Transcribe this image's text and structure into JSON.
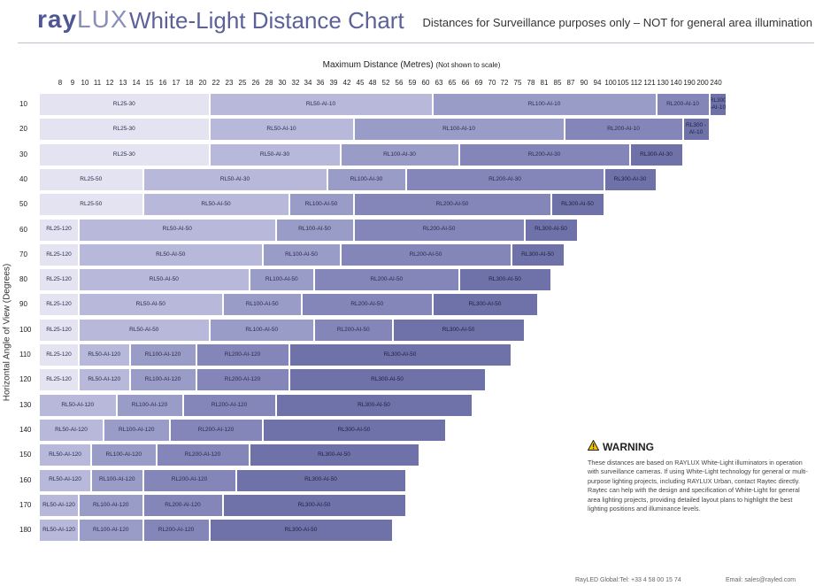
{
  "header": {
    "logo_ray": "ray",
    "logo_lux": "LUX",
    "title": "White-Light Distance Chart",
    "subtitle": "Distances for Surveillance purposes only – NOT for general area illumination"
  },
  "warning": {
    "title": "WARNING",
    "icon": "warning-triangle-icon",
    "body": "These distances are based on RAYLUX White-Light illuminators in operation with surveillance cameras. If using White-Light technology for general or multi-purpose lighting projects, including RAYLUX Urban, contact Raytec directly. Raytec can help with the design and specification of White-Light for general area lighting projects, providing detailed layout plans to highlight the best lighting positions and illuminance levels."
  },
  "footer": {
    "tel": "RayLED Global:Tel:  +33 4 58 00 15 74",
    "email": "Email:  sales@rayled.com"
  },
  "chart_data": {
    "type": "bar",
    "orientation": "horizontal-stacked-ranges",
    "xlabel": "Maximum Distance (Metres)",
    "xlabel_note": "(Not shown to scale)",
    "ylabel": "Horizontal Angle of View (Degrees)",
    "x_ticks": [
      8,
      9,
      10,
      11,
      12,
      13,
      14,
      15,
      16,
      17,
      18,
      20,
      22,
      23,
      25,
      26,
      28,
      30,
      32,
      34,
      36,
      39,
      42,
      45,
      48,
      52,
      56,
      59,
      60,
      63,
      65,
      66,
      69,
      70,
      72,
      75,
      78,
      81,
      85,
      87,
      90,
      94,
      100,
      105,
      112,
      121,
      130,
      140,
      190,
      200,
      240
    ],
    "x_scale": "ordinal (not to scale)",
    "colors": [
      "#e3e3f2",
      "#b8b9da",
      "#9a9cc8",
      "#8486b9",
      "#6f72a8",
      "#5e629b"
    ],
    "rows": [
      {
        "angle": "10",
        "segments": [
          {
            "label": "RL25-30",
            "end": 20
          },
          {
            "label": "RL50-AI-10",
            "end": 60
          },
          {
            "label": "RL100-AI-10",
            "end": 121
          },
          {
            "label": "RL200-AI-10",
            "end": 200
          },
          {
            "label": "RL300 -AI-10",
            "end": 240
          }
        ]
      },
      {
        "angle": "20",
        "segments": [
          {
            "label": "RL25-30",
            "end": 20
          },
          {
            "label": "RL50-AI-10",
            "end": 42
          },
          {
            "label": "RL100-AI-10",
            "end": 85
          },
          {
            "label": "RL200-AI-10",
            "end": 140
          },
          {
            "label": "RL300 -AI-10",
            "end": 200
          }
        ]
      },
      {
        "angle": "30",
        "segments": [
          {
            "label": "RL25-30",
            "end": 20
          },
          {
            "label": "RL50-AI-30",
            "end": 39
          },
          {
            "label": "RL100-AI-30",
            "end": 65
          },
          {
            "label": "RL200-AI-30",
            "end": 105
          },
          {
            "label": "RL300-AI-30",
            "end": 140
          }
        ]
      },
      {
        "angle": "40",
        "segments": [
          {
            "label": "RL25-50",
            "end": 14
          },
          {
            "label": "RL50-AI-30",
            "end": 36
          },
          {
            "label": "RL100-AI-30",
            "end": 56
          },
          {
            "label": "RL200-AI-30",
            "end": 94
          },
          {
            "label": "RL300-AI-30",
            "end": 121
          }
        ]
      },
      {
        "angle": "50",
        "segments": [
          {
            "label": "RL25-50",
            "end": 14
          },
          {
            "label": "RL50-AI-50",
            "end": 30
          },
          {
            "label": "RL100-AI-50",
            "end": 42
          },
          {
            "label": "RL200-AI-50",
            "end": 81
          },
          {
            "label": "RL300-AI-50",
            "end": 94
          }
        ]
      },
      {
        "angle": "60",
        "segments": [
          {
            "label": "RL25-120",
            "end": 9
          },
          {
            "label": "RL50-AI-50",
            "end": 28
          },
          {
            "label": "RL100-AI-50",
            "end": 42
          },
          {
            "label": "RL200-AI-50",
            "end": 75
          },
          {
            "label": "RL300-AI-50",
            "end": 87
          }
        ]
      },
      {
        "angle": "70",
        "segments": [
          {
            "label": "RL25-120",
            "end": 9
          },
          {
            "label": "RL50-AI-50",
            "end": 26
          },
          {
            "label": "RL100-AI-50",
            "end": 39
          },
          {
            "label": "RL200-AI-50",
            "end": 72
          },
          {
            "label": "RL300-AI-50",
            "end": 85
          }
        ]
      },
      {
        "angle": "80",
        "segments": [
          {
            "label": "RL25-120",
            "end": 9
          },
          {
            "label": "RL50-AI-50",
            "end": 25
          },
          {
            "label": "RL100-AI-50",
            "end": 34
          },
          {
            "label": "RL200-AI-50",
            "end": 65
          },
          {
            "label": "RL300-AI-50",
            "end": 81
          }
        ]
      },
      {
        "angle": "90",
        "segments": [
          {
            "label": "RL25-120",
            "end": 9
          },
          {
            "label": "RL50-AI-50",
            "end": 22
          },
          {
            "label": "RL100-AI-50",
            "end": 32
          },
          {
            "label": "RL200-AI-50",
            "end": 60
          },
          {
            "label": "RL300-AI-50",
            "end": 78
          }
        ]
      },
      {
        "angle": "100",
        "segments": [
          {
            "label": "RL25-120",
            "end": 9
          },
          {
            "label": "RL50-AI-50",
            "end": 20
          },
          {
            "label": "RL100-AI-50",
            "end": 34
          },
          {
            "label": "RL200-AI-50",
            "end": 52
          },
          {
            "label": "RL300-AI-50",
            "end": 75
          }
        ]
      },
      {
        "angle": "110",
        "segments": [
          {
            "label": "RL25-120",
            "end": 9
          },
          {
            "label": "RL50-AI-120",
            "end": 13
          },
          {
            "label": "RL100-AI-120",
            "end": 18
          },
          {
            "label": "RL200-AI-120",
            "end": 30
          },
          {
            "label": "RL300-AI-50",
            "end": 72
          }
        ]
      },
      {
        "angle": "120",
        "segments": [
          {
            "label": "RL25-120",
            "end": 9
          },
          {
            "label": "RL50-AI-120",
            "end": 13
          },
          {
            "label": "RL100-AI-120",
            "end": 18
          },
          {
            "label": "RL200-AI-120",
            "end": 30
          },
          {
            "label": "RL300-AI-50",
            "end": 69
          }
        ]
      },
      {
        "angle": "130",
        "segments": [
          {
            "label": "RL50-AI-120",
            "end": 12
          },
          {
            "label": "RL100-AI-120",
            "end": 17
          },
          {
            "label": "RL200-AI-120",
            "end": 28
          },
          {
            "label": "RL300-AI-50",
            "end": 66
          }
        ]
      },
      {
        "angle": "140",
        "segments": [
          {
            "label": "RL50-AI-120",
            "end": 11
          },
          {
            "label": "RL100-AI-120",
            "end": 16
          },
          {
            "label": "RL200-AI-120",
            "end": 26
          },
          {
            "label": "RL300-AI-50",
            "end": 63
          }
        ]
      },
      {
        "angle": "150",
        "segments": [
          {
            "label": "RL50-AI-120",
            "end": 10
          },
          {
            "label": "RL100-AI-120",
            "end": 15
          },
          {
            "label": "RL200-AI-120",
            "end": 25
          },
          {
            "label": "RL300-AI-50",
            "end": 59
          }
        ]
      },
      {
        "angle": "160",
        "segments": [
          {
            "label": "RL50-AI-120",
            "end": 10
          },
          {
            "label": "RL100-AI-120",
            "end": 14
          },
          {
            "label": "RL200-AI-120",
            "end": 23
          },
          {
            "label": "RL300-AI-50",
            "end": 56
          }
        ]
      },
      {
        "angle": "170",
        "segments": [
          {
            "label": "RL50-AI-120",
            "end": 9
          },
          {
            "label": "RL100-AI-120",
            "end": 14
          },
          {
            "label": "RL200-AI-120",
            "end": 22
          },
          {
            "label": "RL300-AI-50",
            "end": 56
          }
        ]
      },
      {
        "angle": "180",
        "segments": [
          {
            "label": "RL50-AI-120",
            "end": 9
          },
          {
            "label": "RL100-AI-120",
            "end": 14
          },
          {
            "label": "RL200-AI-120",
            "end": 20
          },
          {
            "label": "RL300-AI-50",
            "end": 52
          }
        ]
      }
    ]
  }
}
